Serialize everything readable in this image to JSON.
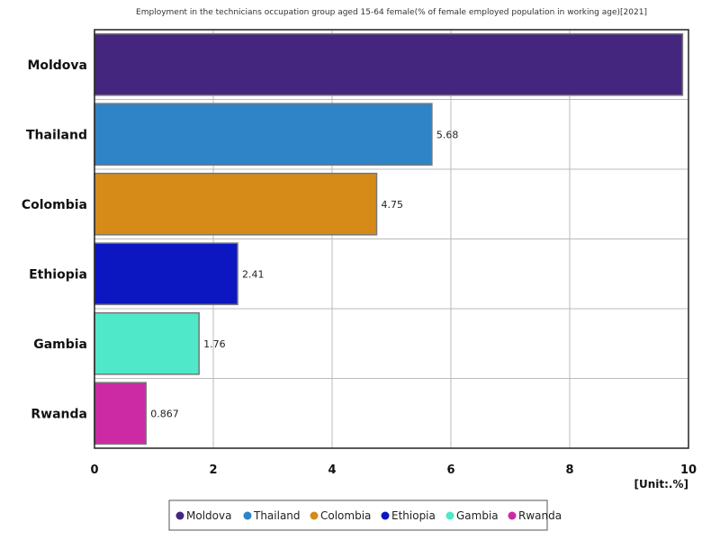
{
  "chart_data": {
    "type": "bar",
    "orientation": "horizontal",
    "title": "Employment in the technicians occupation group aged 15-64 female(% of female employed population in working age)[2021]",
    "unit_label": "[Unit:.%]",
    "categories": [
      "Moldova",
      "Thailand",
      "Colombia",
      "Ethiopia",
      "Gambia",
      "Rwanda"
    ],
    "values": [
      9.9,
      5.68,
      4.75,
      2.41,
      1.76,
      0.867
    ],
    "value_labels": [
      "",
      "5.68",
      "4.75",
      "2.41",
      "1.76",
      "0.867"
    ],
    "colors": [
      "#45267f",
      "#2e84c6",
      "#d68a18",
      "#0c17c2",
      "#4fe8c8",
      "#cc2aa5"
    ],
    "xlim": [
      0,
      10
    ],
    "xticks": [
      0,
      2,
      4,
      6,
      8,
      10
    ],
    "grid": true,
    "legend": {
      "position": "bottom",
      "entries": [
        "Moldova",
        "Thailand",
        "Colombia",
        "Ethiopia",
        "Gambia",
        "Rwanda"
      ]
    }
  }
}
